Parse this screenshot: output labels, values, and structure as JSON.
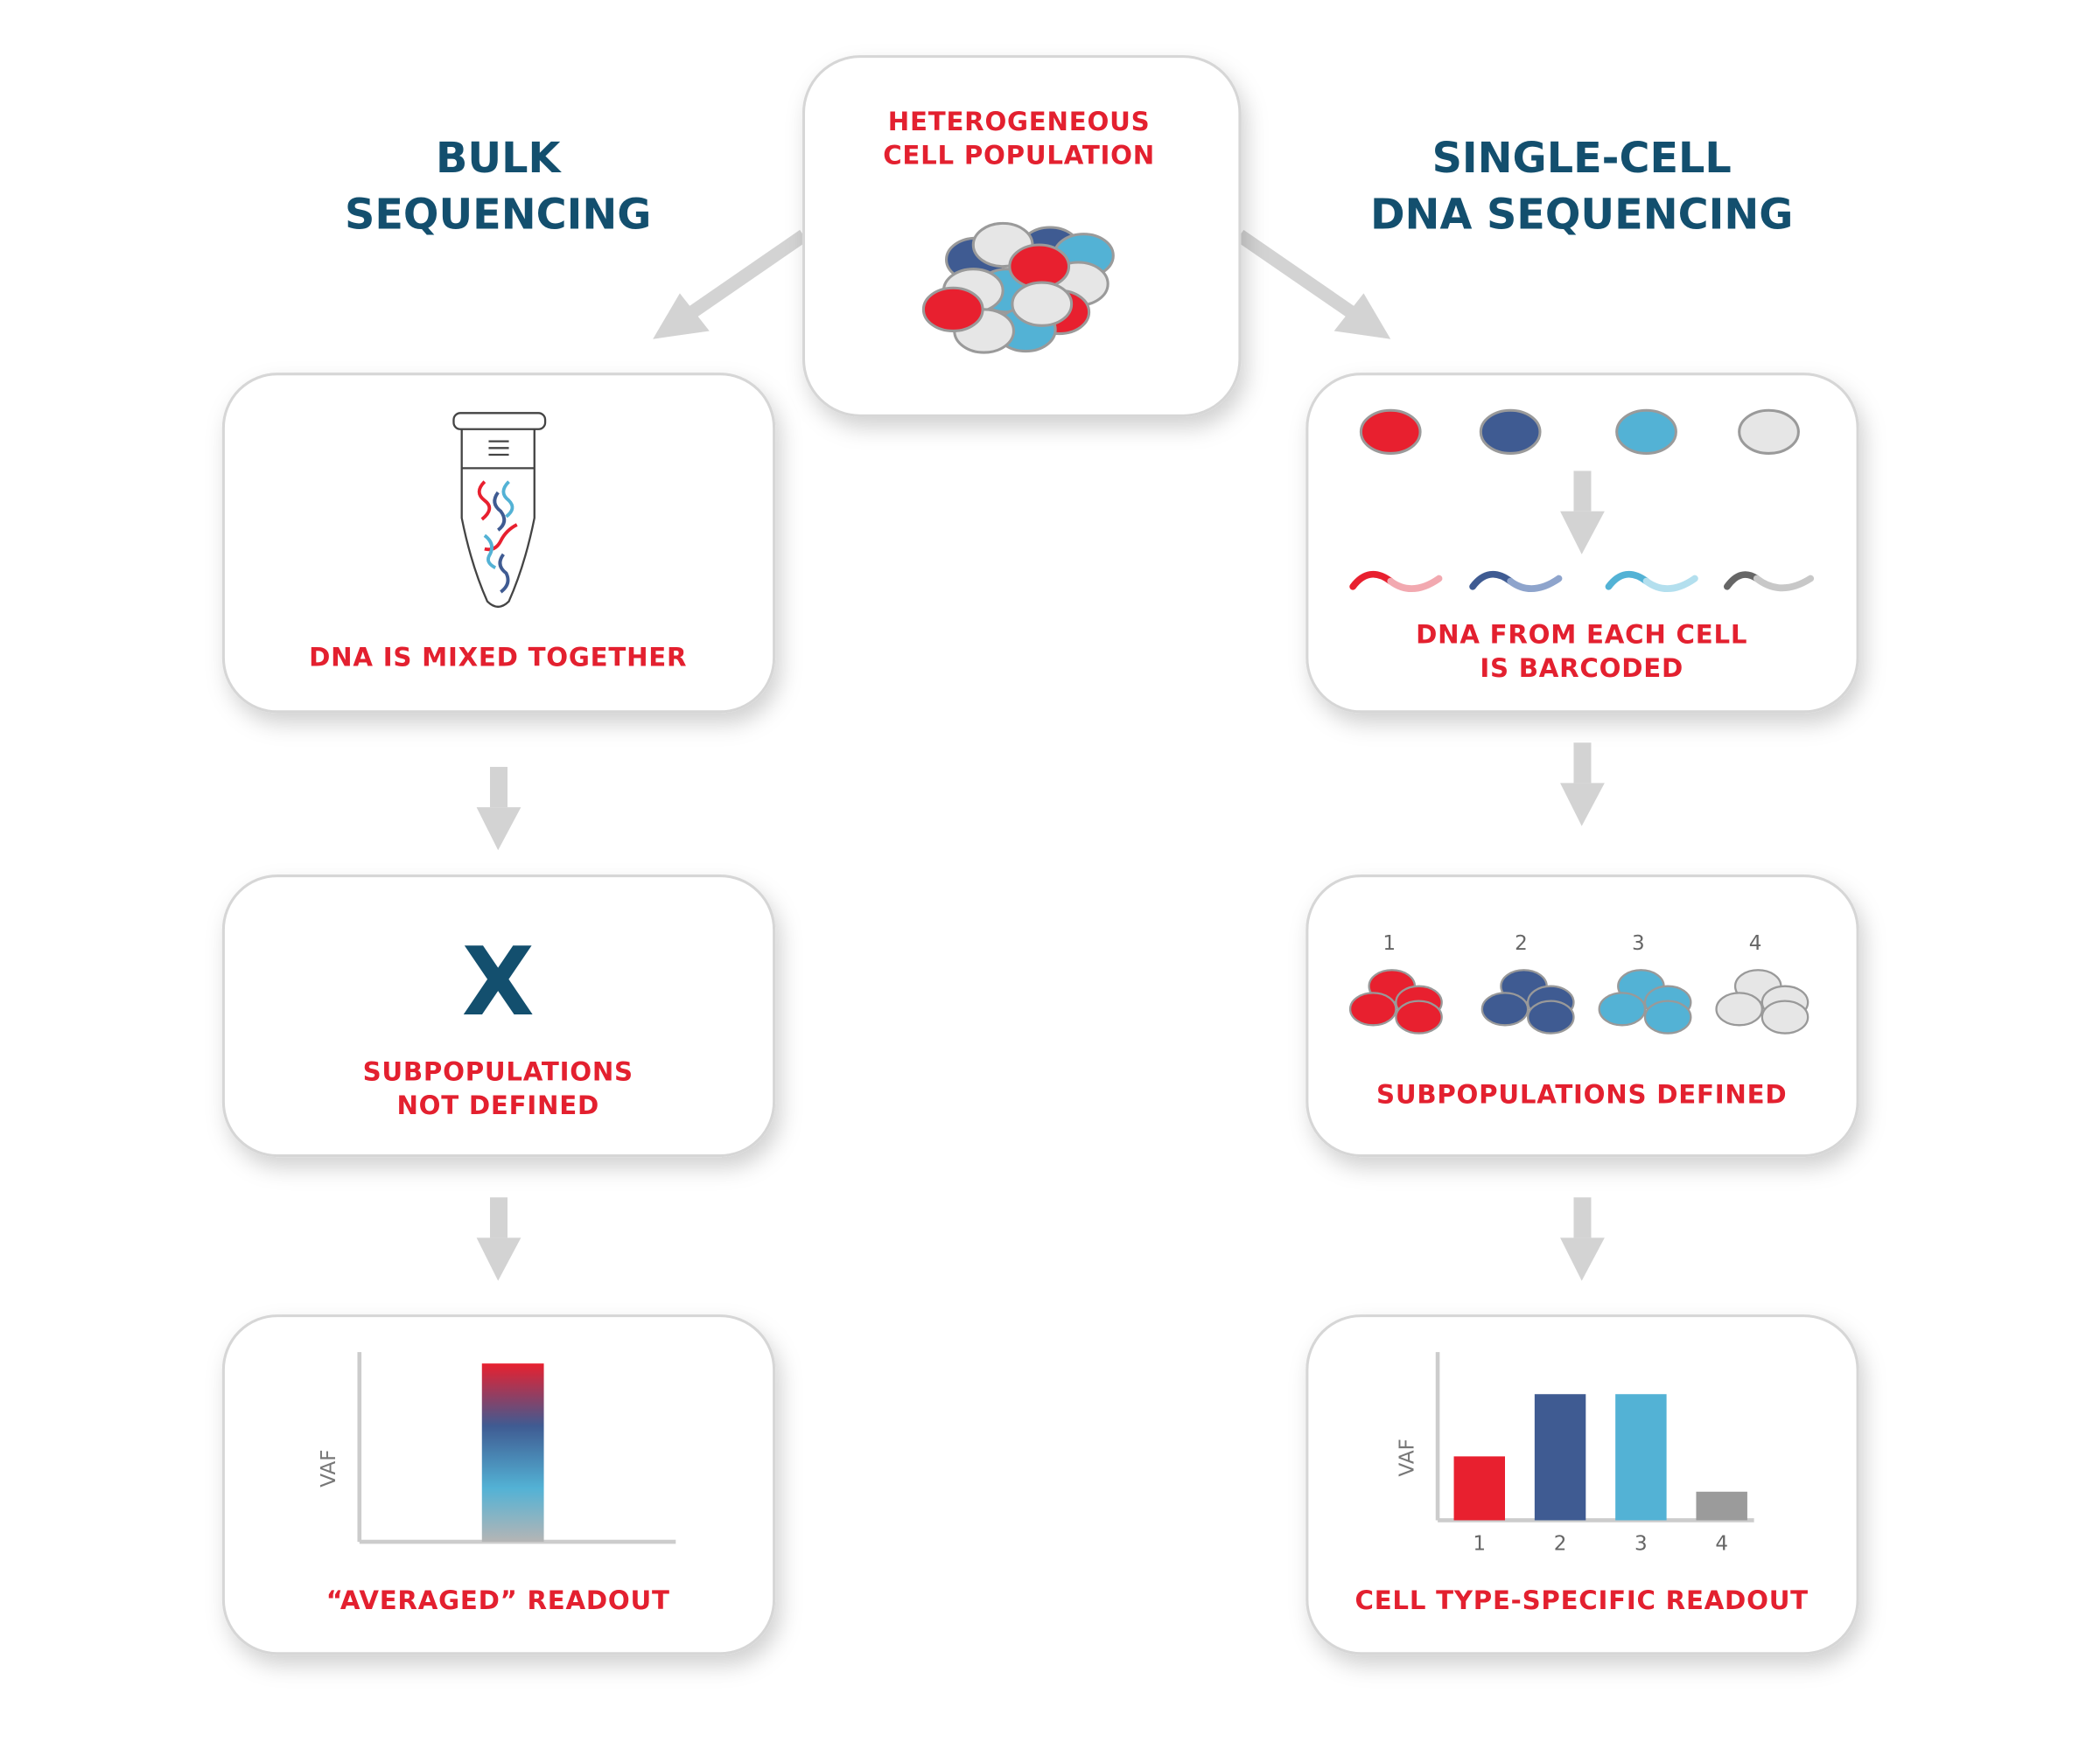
{
  "titles": {
    "bulk": [
      "BULK",
      "SEQUENCING"
    ],
    "single": [
      "SINGLE-CELL",
      "DNA SEQUENCING"
    ]
  },
  "center": {
    "label": [
      "HETEROGENEOUS",
      "CELL POPULATION"
    ]
  },
  "bulk_steps": {
    "mixed": "DNA IS MIXED TOGETHER",
    "not_defined": [
      "SUBPOPULATIONS",
      "NOT DEFINED"
    ],
    "x_mark": "X",
    "readout": "“AVERAGED” READOUT"
  },
  "single_steps": {
    "barcoded": [
      "DNA FROM EACH CELL",
      "IS BARCODED"
    ],
    "defined": "SUBPOPULATIONS DEFINED",
    "group_numbers": [
      "1",
      "2",
      "3",
      "4"
    ],
    "readout": "CELL TYPE-SPECIFIC READOUT"
  },
  "colors": {
    "red": "#e8202f",
    "navy": "#3f5b92",
    "sky": "#53b2d5",
    "gray": "#e6e6e6",
    "title": "#134f6e"
  },
  "chart_data": [
    {
      "type": "bar",
      "ylabel": "VAF",
      "categories": [
        ""
      ],
      "values": [
        94
      ],
      "ylim": [
        0,
        100
      ],
      "fill": "gradient red-navy-sky-gray"
    },
    {
      "type": "bar",
      "ylabel": "VAF",
      "categories": [
        "1",
        "2",
        "3",
        "4"
      ],
      "values": [
        38,
        75,
        75,
        17
      ],
      "ylim": [
        0,
        100
      ],
      "colors": [
        "#e8202f",
        "#3f5b92",
        "#53b2d5",
        "#9b9b9b"
      ]
    }
  ]
}
